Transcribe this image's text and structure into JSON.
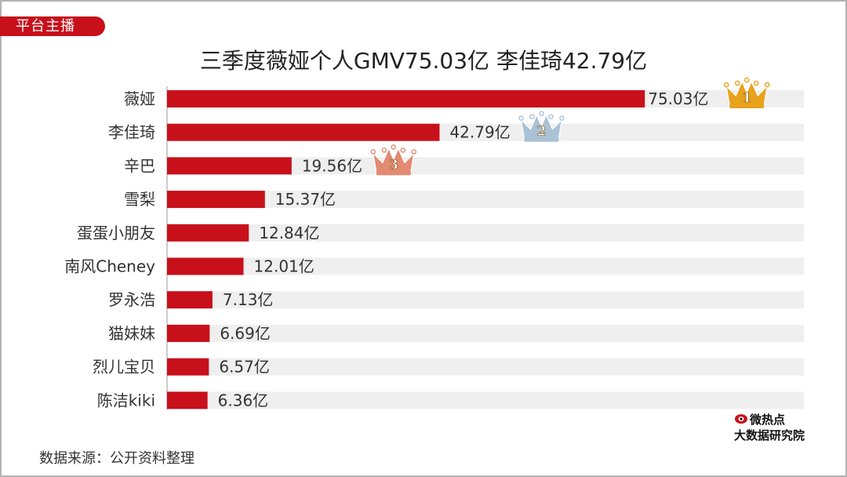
{
  "tag": "平台主播",
  "title": "三季度薇娅个人GMV75.03亿 李佳琦42.79亿",
  "source": "数据来源：公开资料整理",
  "logo": {
    "line1": "微热点",
    "line2": "大数据研究院"
  },
  "colors": {
    "bar": "#c8101b",
    "track": "#efefef",
    "tag": "#c8101b",
    "crown_gold": "#e8a21c",
    "crown_silver": "#a9c2d6",
    "crown_bronze": "#e38a73"
  },
  "chart_data": {
    "type": "bar",
    "orientation": "horizontal",
    "title": "三季度薇娅个人GMV75.03亿 李佳琦42.79亿",
    "unit": "亿",
    "categories": [
      "薇娅",
      "李佳琦",
      "辛巴",
      "雪梨",
      "蛋蛋小朋友",
      "南风Cheney",
      "罗永浩",
      "猫妹妹",
      "烈儿宝贝",
      "陈洁kiki"
    ],
    "values": [
      75.03,
      42.79,
      19.56,
      15.37,
      12.84,
      12.01,
      7.13,
      6.69,
      6.57,
      6.36
    ],
    "data_labels": [
      "75.03亿",
      "42.79亿",
      "19.56亿",
      "15.37亿",
      "12.84亿",
      "12.01亿",
      "7.13亿",
      "6.69亿",
      "6.57亿",
      "6.36亿"
    ],
    "xlim": [
      0,
      100
    ],
    "rank_badges": [
      {
        "rank": 1,
        "label": "1",
        "icon": "gold-crown-icon"
      },
      {
        "rank": 2,
        "label": "2",
        "icon": "silver-crown-icon"
      },
      {
        "rank": 3,
        "label": "3",
        "icon": "bronze-crown-icon"
      }
    ],
    "grid": false,
    "legend": "none"
  }
}
